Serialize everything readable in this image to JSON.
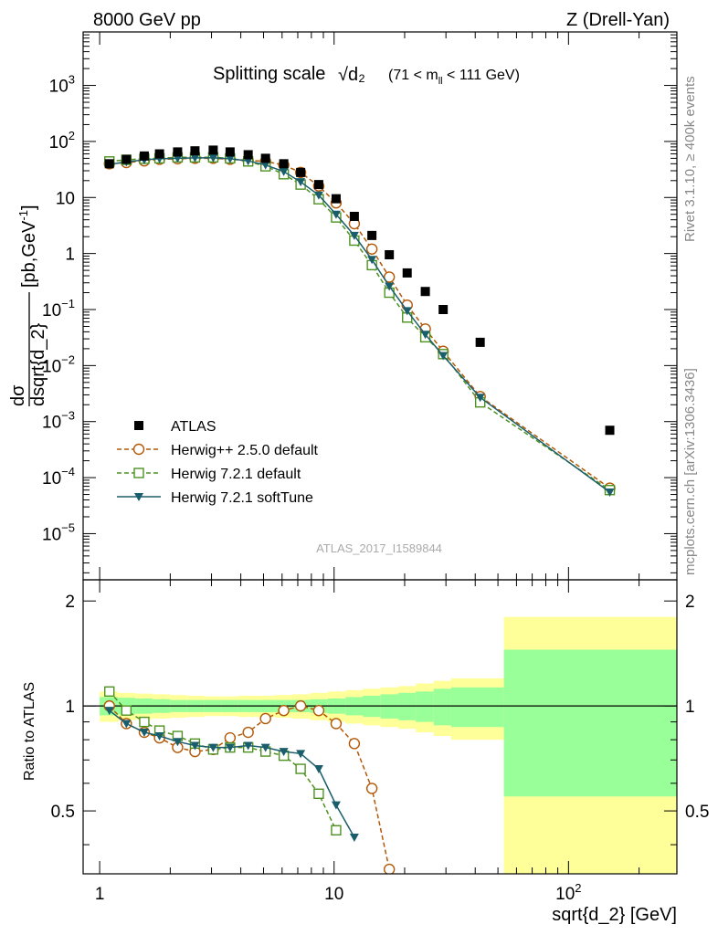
{
  "header": {
    "left": "8000 GeV pp",
    "right": "Z (Drell-Yan)"
  },
  "side_labels": {
    "rivet": "Rivet 3.1.10, ≥ 400k events",
    "mcplots": "mcplots.cern.ch [arXiv:1306.3436]"
  },
  "watermark": "ATLAS_2017_I1589844",
  "colors": {
    "atlas": "#000000",
    "herwigpp": "#b35806",
    "h721": "#4d9221",
    "soft": "#1b5e6b",
    "band_inner": "#99ff99",
    "band_outer": "#ffff99"
  },
  "chart_data": [
    {
      "type": "scatter",
      "title": "Splitting scale",
      "title_math": "√d₂",
      "title_range": "(71 < m_ll < 111 GeV)",
      "title_range_parts": {
        "pre": "(71 < m",
        "sub": "ll",
        "post": " < 111 GeV)"
      },
      "xlabel": "sqrt{d_2} [GeV]",
      "ylabel": "dσ/dsqrt{d_2} [pb,GeV⁻¹]",
      "ylabel_parts": {
        "num": "dσ",
        "den": "dsqrt{d_2}",
        "unit": "[pb,GeV",
        "sup": "-1",
        "close": "]"
      },
      "xscale": "log",
      "yscale": "log",
      "xlim": [
        0.85,
        290
      ],
      "ylim": [
        1.5e-06,
        9000
      ],
      "xticks": [
        {
          "v": 1,
          "label": "1"
        },
        {
          "v": 10,
          "label": "10"
        },
        {
          "v": 100,
          "label": "10",
          "sup": "2"
        }
      ],
      "yticks": [
        {
          "v": 1e-05,
          "base": "10",
          "sup": "−5"
        },
        {
          "v": 0.0001,
          "base": "10",
          "sup": "−4"
        },
        {
          "v": 0.001,
          "base": "10",
          "sup": "−3"
        },
        {
          "v": 0.01,
          "base": "10",
          "sup": "−2"
        },
        {
          "v": 0.1,
          "base": "10",
          "sup": "−1"
        },
        {
          "v": 1,
          "base": "1",
          "sup": ""
        },
        {
          "v": 10,
          "base": "10",
          "sup": ""
        },
        {
          "v": 100,
          "base": "10",
          "sup": "2"
        },
        {
          "v": 1000,
          "base": "10",
          "sup": "3"
        }
      ],
      "legend_position": "center-left",
      "series": [
        {
          "name": "ATLAS",
          "style": "square",
          "color": "#000000",
          "x": [
            1.1,
            1.3,
            1.55,
            1.8,
            2.15,
            2.55,
            3.05,
            3.6,
            4.3,
            5.1,
            6.1,
            7.2,
            8.6,
            10.2,
            12.2,
            14.5,
            17.2,
            20.5,
            24.5,
            29.2,
            42,
            150
          ],
          "y": [
            40,
            48,
            55,
            60,
            65,
            68,
            70,
            65,
            58,
            50,
            40,
            28,
            17,
            9.5,
            4.6,
            2.1,
            0.95,
            0.45,
            0.21,
            0.1,
            0.026,
            0.0007
          ]
        },
        {
          "name": "Herwig++ 2.5.0 default",
          "style": "circle",
          "color": "#b35806",
          "dashed": true,
          "x": [
            1.1,
            1.3,
            1.55,
            1.8,
            2.15,
            2.55,
            3.05,
            3.6,
            4.3,
            5.1,
            6.1,
            7.2,
            8.6,
            10.2,
            12.2,
            14.5,
            17.2,
            20.5,
            24.5,
            29.2,
            42,
            150
          ],
          "y": [
            40,
            42,
            45,
            48,
            49,
            50,
            50,
            48,
            46,
            44,
            38,
            28,
            16,
            8,
            3.4,
            1.2,
            0.38,
            0.12,
            0.045,
            0.018,
            0.0028,
            6.5e-05
          ]
        },
        {
          "name": "Herwig 7.2.1 default",
          "style": "open-square",
          "color": "#4d9221",
          "dashed": true,
          "x": [
            1.1,
            1.3,
            1.55,
            1.8,
            2.15,
            2.55,
            3.05,
            3.6,
            4.3,
            5.1,
            6.1,
            7.2,
            8.6,
            10.2,
            12.2,
            14.5,
            17.2,
            20.5,
            24.5,
            29.2,
            42,
            150
          ],
          "y": [
            44,
            47,
            49,
            50,
            52,
            52,
            52,
            50,
            44,
            36,
            26,
            17,
            9.3,
            4.4,
            1.7,
            0.62,
            0.2,
            0.072,
            0.032,
            0.016,
            0.0022,
            6e-05
          ]
        },
        {
          "name": "Herwig 7.2.1 softTune",
          "style": "triangle",
          "color": "#1b5e6b",
          "x": [
            1.1,
            1.3,
            1.55,
            1.8,
            2.15,
            2.55,
            3.05,
            3.6,
            4.3,
            5.1,
            6.1,
            7.2,
            8.6,
            10.2,
            12.2,
            14.5,
            17.2,
            20.5,
            24.5,
            29.2,
            42,
            150
          ],
          "y": [
            39,
            43,
            47,
            49,
            50,
            51,
            51,
            49,
            45,
            38,
            29,
            19,
            11,
            5,
            2.1,
            0.78,
            0.26,
            0.095,
            0.036,
            0.015,
            0.0027,
            5.5e-05
          ]
        }
      ]
    },
    {
      "type": "line",
      "ylabel": "Ratio to ATLAS",
      "xscale": "log",
      "xlim": [
        0.85,
        290
      ],
      "ylim": [
        0.33,
        2.3
      ],
      "yticks": [
        {
          "v": 0.5,
          "label": "0.5"
        },
        {
          "v": 1,
          "label": "1"
        },
        {
          "v": 2,
          "label": "2"
        }
      ],
      "bands": [
        {
          "x0": 1.0,
          "x1": 1.2,
          "inner": 0.06,
          "outer": 0.1
        },
        {
          "x0": 1.2,
          "x1": 1.42,
          "inner": 0.055,
          "outer": 0.09
        },
        {
          "x0": 1.42,
          "x1": 1.68,
          "inner": 0.05,
          "outer": 0.085
        },
        {
          "x0": 1.68,
          "x1": 2.0,
          "inner": 0.045,
          "outer": 0.08
        },
        {
          "x0": 2.0,
          "x1": 2.35,
          "inner": 0.04,
          "outer": 0.075
        },
        {
          "x0": 2.35,
          "x1": 2.8,
          "inner": 0.04,
          "outer": 0.07
        },
        {
          "x0": 2.8,
          "x1": 3.3,
          "inner": 0.04,
          "outer": 0.065
        },
        {
          "x0": 3.3,
          "x1": 3.9,
          "inner": 0.04,
          "outer": 0.065
        },
        {
          "x0": 3.9,
          "x1": 4.7,
          "inner": 0.04,
          "outer": 0.07
        },
        {
          "x0": 4.7,
          "x1": 5.6,
          "inner": 0.04,
          "outer": 0.07
        },
        {
          "x0": 5.6,
          "x1": 6.6,
          "inner": 0.04,
          "outer": 0.075
        },
        {
          "x0": 6.6,
          "x1": 7.9,
          "inner": 0.04,
          "outer": 0.08
        },
        {
          "x0": 7.9,
          "x1": 9.4,
          "inner": 0.045,
          "outer": 0.09
        },
        {
          "x0": 9.4,
          "x1": 11.2,
          "inner": 0.05,
          "outer": 0.1
        },
        {
          "x0": 11.2,
          "x1": 13.3,
          "inner": 0.06,
          "outer": 0.11
        },
        {
          "x0": 13.3,
          "x1": 15.8,
          "inner": 0.07,
          "outer": 0.12
        },
        {
          "x0": 15.8,
          "x1": 18.8,
          "inner": 0.08,
          "outer": 0.13
        },
        {
          "x0": 18.8,
          "x1": 22.3,
          "inner": 0.09,
          "outer": 0.14
        },
        {
          "x0": 22.3,
          "x1": 26.6,
          "inner": 0.1,
          "outer": 0.16
        },
        {
          "x0": 26.6,
          "x1": 31.6,
          "inner": 0.12,
          "outer": 0.18
        },
        {
          "x0": 31.6,
          "x1": 53,
          "inner": 0.13,
          "outer": 0.2
        },
        {
          "x0": 53,
          "x1": 290,
          "inner": 0.45,
          "outer": 0.8
        }
      ],
      "series": [
        {
          "name": "Herwig++ 2.5.0 default",
          "style": "circle",
          "color": "#b35806",
          "dashed": true,
          "x": [
            1.1,
            1.3,
            1.55,
            1.8,
            2.15,
            2.55,
            3.05,
            3.6,
            4.3,
            5.1,
            6.1,
            7.2,
            8.6,
            10.2,
            12.2,
            14.5,
            17.2
          ],
          "y": [
            1.0,
            0.89,
            0.84,
            0.81,
            0.76,
            0.74,
            0.75,
            0.81,
            0.84,
            0.92,
            0.97,
            1.0,
            0.97,
            0.89,
            0.78,
            0.58,
            0.34
          ]
        },
        {
          "name": "Herwig 7.2.1 default",
          "style": "open-square",
          "color": "#4d9221",
          "dashed": true,
          "x": [
            1.1,
            1.3,
            1.55,
            1.8,
            2.15,
            2.55,
            3.05,
            3.6,
            4.3,
            5.1,
            6.1,
            7.2,
            8.6,
            10.2
          ],
          "y": [
            1.1,
            0.97,
            0.9,
            0.85,
            0.82,
            0.78,
            0.75,
            0.76,
            0.76,
            0.74,
            0.72,
            0.66,
            0.56,
            0.44
          ]
        },
        {
          "name": "Herwig 7.2.1 softTune",
          "style": "triangle",
          "color": "#1b5e6b",
          "x": [
            1.1,
            1.3,
            1.55,
            1.8,
            2.15,
            2.55,
            3.05,
            3.6,
            4.3,
            5.1,
            6.1,
            7.2,
            8.6,
            10.2,
            12.2
          ],
          "y": [
            0.97,
            0.89,
            0.84,
            0.82,
            0.79,
            0.77,
            0.76,
            0.76,
            0.77,
            0.76,
            0.74,
            0.73,
            0.66,
            0.52,
            0.42
          ]
        }
      ]
    }
  ]
}
